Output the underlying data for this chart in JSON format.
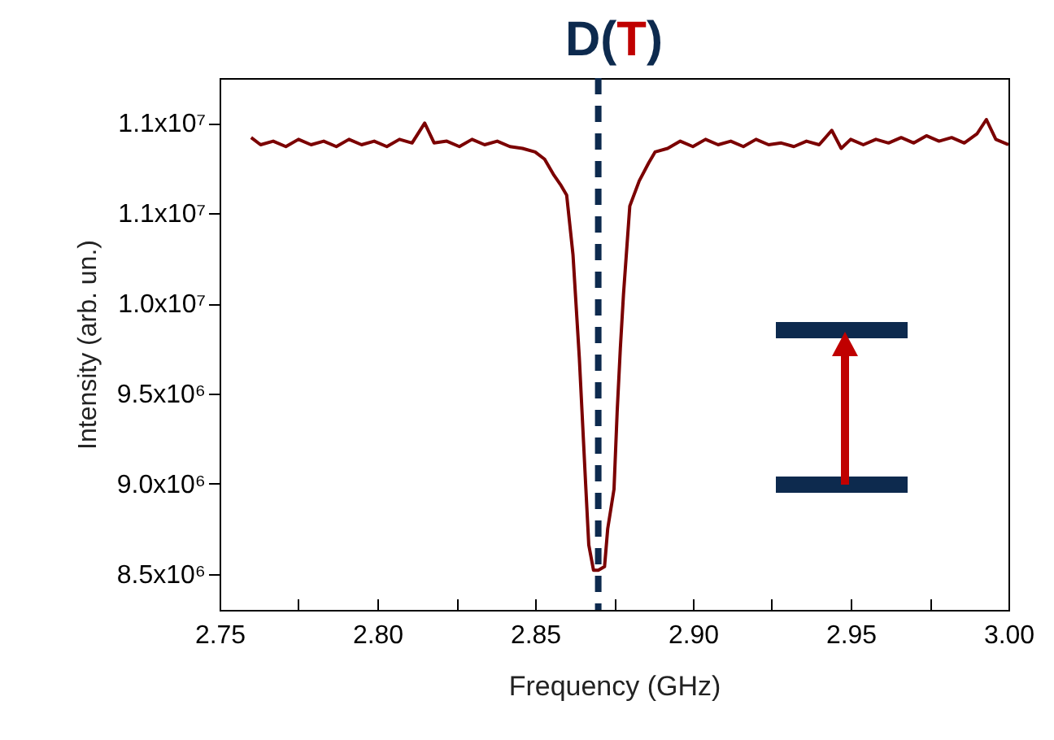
{
  "chart_data": {
    "type": "line",
    "title": "D(T)",
    "xlabel": "Frequency (GHz)",
    "ylabel": "Intensity (arb. un.)",
    "x": [
      2.76,
      2.763,
      2.767,
      2.771,
      2.775,
      2.779,
      2.783,
      2.787,
      2.791,
      2.795,
      2.799,
      2.803,
      2.807,
      2.811,
      2.815,
      2.818,
      2.822,
      2.826,
      2.83,
      2.834,
      2.838,
      2.842,
      2.846,
      2.85,
      2.853,
      2.856,
      2.858,
      2.86,
      2.862,
      2.864,
      2.866,
      2.867,
      2.8685,
      2.87,
      2.872,
      2.873,
      2.875,
      2.876,
      2.877,
      2.878,
      2.88,
      2.883,
      2.886,
      2.888,
      2.892,
      2.896,
      2.9,
      2.904,
      2.908,
      2.912,
      2.916,
      2.92,
      2.924,
      2.928,
      2.932,
      2.936,
      2.94,
      2.944,
      2.947,
      2.95,
      2.954,
      2.958,
      2.962,
      2.966,
      2.97,
      2.974,
      2.978,
      2.982,
      2.986,
      2.99,
      2.993,
      2.996,
      3.0
    ],
    "series": [
      {
        "color": "#7b0000",
        "values": [
          10920000,
          10880000,
          10900000,
          10870000,
          10910000,
          10880000,
          10900000,
          10870000,
          10910000,
          10880000,
          10900000,
          10870000,
          10910000,
          10890000,
          11000000,
          10890000,
          10900000,
          10870000,
          10910000,
          10880000,
          10900000,
          10870000,
          10860000,
          10840000,
          10800000,
          10710000,
          10660000,
          10600000,
          10270000,
          9700000,
          9000000,
          8660000,
          8520000,
          8520000,
          8540000,
          8750000,
          8970000,
          9400000,
          9750000,
          10050000,
          10540000,
          10680000,
          10780000,
          10840000,
          10860000,
          10900000,
          10870000,
          10910000,
          10880000,
          10900000,
          10870000,
          10910000,
          10880000,
          10890000,
          10870000,
          10900000,
          10880000,
          10960000,
          10860000,
          10910000,
          10880000,
          10910000,
          10890000,
          10920000,
          10890000,
          10930000,
          10900000,
          10920000,
          10890000,
          10940000,
          11020000,
          10910000,
          10880000
        ]
      }
    ],
    "xlim": [
      2.75,
      3.0
    ],
    "xticks": [
      2.75,
      {
        "value": 2.775,
        "label": null
      },
      {
        "value": 2.8,
        "label": "2.80"
      },
      {
        "value": 2.825,
        "label": null
      },
      2.85,
      {
        "value": 2.875,
        "label": null
      },
      {
        "value": 2.9,
        "label": "2.90"
      },
      {
        "value": 2.925,
        "label": null
      },
      2.95,
      {
        "value": 2.975,
        "label": null
      },
      {
        "value": 3.0,
        "label": "3.00"
      }
    ],
    "ylim": [
      8300000,
      11250000
    ],
    "yticks": [
      {
        "value": 8500000,
        "label": "8.5x10⁶"
      },
      {
        "value": 9000000,
        "label": "9.0x10⁶"
      },
      {
        "value": 9500000,
        "label": "9.5x10⁶"
      },
      {
        "value": 10000000,
        "label": "1.0x10⁷"
      },
      {
        "value": 10500000,
        "label": "1.1x10⁷"
      },
      {
        "value": 11000000,
        "label": "1.1x10⁷"
      }
    ],
    "ref_lines": [
      {
        "axis": "x",
        "value": 2.87,
        "color": "#0d2a4e",
        "line_style": "dashed"
      }
    ]
  }
}
